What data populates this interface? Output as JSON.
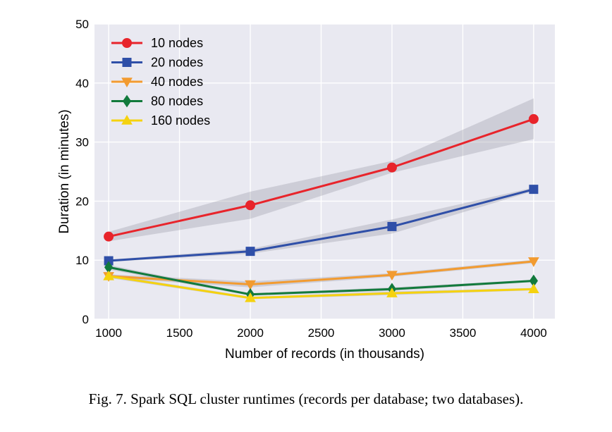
{
  "chart_data": {
    "type": "line",
    "xlabel": "Number of records (in thousands)",
    "ylabel": "Duration (in minutes)",
    "xlim": [
      900,
      4150
    ],
    "ylim": [
      0,
      50
    ],
    "xticks": [
      1000,
      1500,
      2000,
      2500,
      3000,
      3500,
      4000
    ],
    "yticks": [
      0,
      10,
      20,
      30,
      40,
      50
    ],
    "grid": true,
    "legend_position": "top-left",
    "x": [
      1000,
      2000,
      3000,
      4000
    ],
    "series": [
      {
        "name": "10 nodes",
        "color": "#e8242b",
        "marker": "circle",
        "values": [
          14.0,
          19.3,
          25.7,
          33.9
        ],
        "band_low": [
          13.2,
          17.0,
          24.8,
          30.5
        ],
        "band_high": [
          14.8,
          21.6,
          26.8,
          37.4
        ]
      },
      {
        "name": "20 nodes",
        "color": "#2f4fa8",
        "marker": "square",
        "values": [
          9.9,
          11.5,
          15.7,
          22.0
        ],
        "band_low": [
          9.7,
          11.1,
          14.5,
          21.7
        ],
        "band_high": [
          10.1,
          11.9,
          16.9,
          22.3
        ]
      },
      {
        "name": "40 nodes",
        "color": "#f29b30",
        "marker": "triangle-down",
        "values": [
          7.3,
          5.9,
          7.5,
          9.8
        ],
        "band_low": [
          7.0,
          5.4,
          7.2,
          9.5
        ],
        "band_high": [
          7.6,
          6.4,
          7.8,
          10.1
        ]
      },
      {
        "name": "80 nodes",
        "color": "#127a3c",
        "marker": "diamond",
        "values": [
          8.8,
          4.2,
          5.1,
          6.5
        ],
        "band_low": [
          8.4,
          4.0,
          4.8,
          6.3
        ],
        "band_high": [
          9.2,
          4.4,
          5.4,
          6.7
        ]
      },
      {
        "name": "160 nodes",
        "color": "#f5d20f",
        "marker": "triangle-up",
        "values": [
          7.3,
          3.6,
          4.4,
          5.1
        ],
        "band_low": [
          7.0,
          3.4,
          4.1,
          4.9
        ],
        "band_high": [
          7.6,
          3.8,
          4.7,
          5.3
        ]
      }
    ]
  },
  "caption": "Fig. 7.  Spark SQL cluster runtimes (records per database; two databases)."
}
